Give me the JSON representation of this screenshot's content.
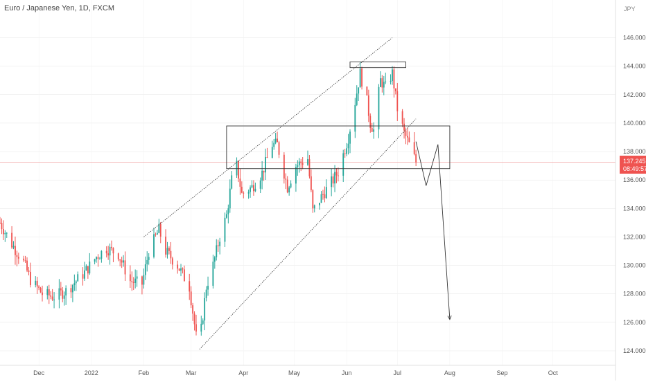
{
  "header": {
    "title": "Euro / Japanese Yen, 1D, FXCM"
  },
  "axis": {
    "currency": "JPY"
  },
  "price_tag": {
    "price": "137.245",
    "countdown": "08:49:57"
  },
  "colors": {
    "up": "#26a69a",
    "down": "#ef5350",
    "line": "#333333",
    "axis_text": "#555555",
    "grid": "#e6e6e6"
  },
  "chart_data": {
    "type": "candlestick",
    "symbol": "EURJPY",
    "timeframe": "1D",
    "ylim": [
      123.3,
      148.0
    ],
    "y_ticks": [
      124,
      126,
      128,
      130,
      132,
      134,
      136,
      138,
      140,
      142,
      144,
      146
    ],
    "y_tick_labels": [
      "124.000",
      "126.000",
      "128.000",
      "130.000",
      "132.000",
      "134.000",
      "136.000",
      "138.000",
      "140.000",
      "142.000",
      "144.000",
      "146.000"
    ],
    "x_labels": [
      "Dec",
      "2022",
      "Feb",
      "Mar",
      "Apr",
      "May",
      "Jun",
      "Jul",
      "Aug",
      "Sep",
      "Oct"
    ],
    "x_label_dates": [
      "2021-12-01",
      "2022-01-01",
      "2022-02-01",
      "2022-03-01",
      "2022-04-01",
      "2022-05-01",
      "2022-06-01",
      "2022-07-01",
      "2022-08-01",
      "2022-09-01",
      "2022-10-01"
    ],
    "x_range": [
      "2021-11-08",
      "2022-11-07"
    ],
    "anchors": [
      [
        "2021-11-08",
        133.0
      ],
      [
        "2021-11-15",
        131.5
      ],
      [
        "2021-11-22",
        130.2
      ],
      [
        "2021-11-26",
        129.0
      ],
      [
        "2021-12-03",
        128.0
      ],
      [
        "2021-12-10",
        127.8
      ],
      [
        "2021-12-17",
        128.2
      ],
      [
        "2021-12-28",
        129.5
      ],
      [
        "2022-01-04",
        130.6
      ],
      [
        "2022-01-10",
        131.2
      ],
      [
        "2022-01-17",
        130.8
      ],
      [
        "2022-01-24",
        128.9
      ],
      [
        "2022-01-31",
        128.7
      ],
      [
        "2022-02-04",
        131.0
      ],
      [
        "2022-02-10",
        132.5
      ],
      [
        "2022-02-14",
        131.0
      ],
      [
        "2022-02-21",
        130.0
      ],
      [
        "2022-02-28",
        128.5
      ],
      [
        "2022-03-04",
        125.0
      ],
      [
        "2022-03-07",
        125.5
      ],
      [
        "2022-03-10",
        128.5
      ],
      [
        "2022-03-14",
        130.0
      ],
      [
        "2022-03-18",
        132.0
      ],
      [
        "2022-03-22",
        133.5
      ],
      [
        "2022-03-25",
        136.0
      ],
      [
        "2022-03-28",
        137.0
      ],
      [
        "2022-03-31",
        135.0
      ],
      [
        "2022-04-06",
        135.5
      ],
      [
        "2022-04-12",
        136.5
      ],
      [
        "2022-04-18",
        138.5
      ],
      [
        "2022-04-21",
        138.5
      ],
      [
        "2022-04-25",
        136.5
      ],
      [
        "2022-04-27",
        135.5
      ],
      [
        "2022-05-02",
        137.0
      ],
      [
        "2022-05-09",
        137.5
      ],
      [
        "2022-05-12",
        133.8
      ],
      [
        "2022-05-18",
        135.0
      ],
      [
        "2022-05-24",
        136.0
      ],
      [
        "2022-05-27",
        136.6
      ],
      [
        "2022-06-02",
        139.0
      ],
      [
        "2022-06-06",
        141.5
      ],
      [
        "2022-06-09",
        143.5
      ],
      [
        "2022-06-13",
        141.5
      ],
      [
        "2022-06-15",
        140.0
      ],
      [
        "2022-06-17",
        139.5
      ],
      [
        "2022-06-21",
        143.0
      ],
      [
        "2022-06-24",
        142.5
      ],
      [
        "2022-06-28",
        143.5
      ],
      [
        "2022-07-01",
        141.0
      ],
      [
        "2022-07-05",
        139.3
      ],
      [
        "2022-07-08",
        138.5
      ],
      [
        "2022-07-12",
        137.245
      ]
    ],
    "channel": {
      "upper": [
        [
          "2022-02-01",
          132.0
        ],
        [
          "2022-06-28",
          146.0
        ]
      ],
      "lower": [
        [
          "2022-03-06",
          124.1
        ],
        [
          "2022-07-12",
          140.3
        ]
      ]
    },
    "zones": [
      {
        "from": "2022-03-22",
        "to": "2022-08-01",
        "low": 136.8,
        "high": 139.8
      },
      {
        "from": "2022-06-03",
        "to": "2022-07-06",
        "low": 143.9,
        "high": 144.3
      }
    ],
    "projection": [
      [
        "2022-07-12",
        138.7
      ],
      [
        "2022-07-18",
        135.6
      ],
      [
        "2022-07-25",
        138.5
      ],
      [
        "2022-08-01",
        126.2
      ]
    ],
    "current_price": 137.245
  }
}
